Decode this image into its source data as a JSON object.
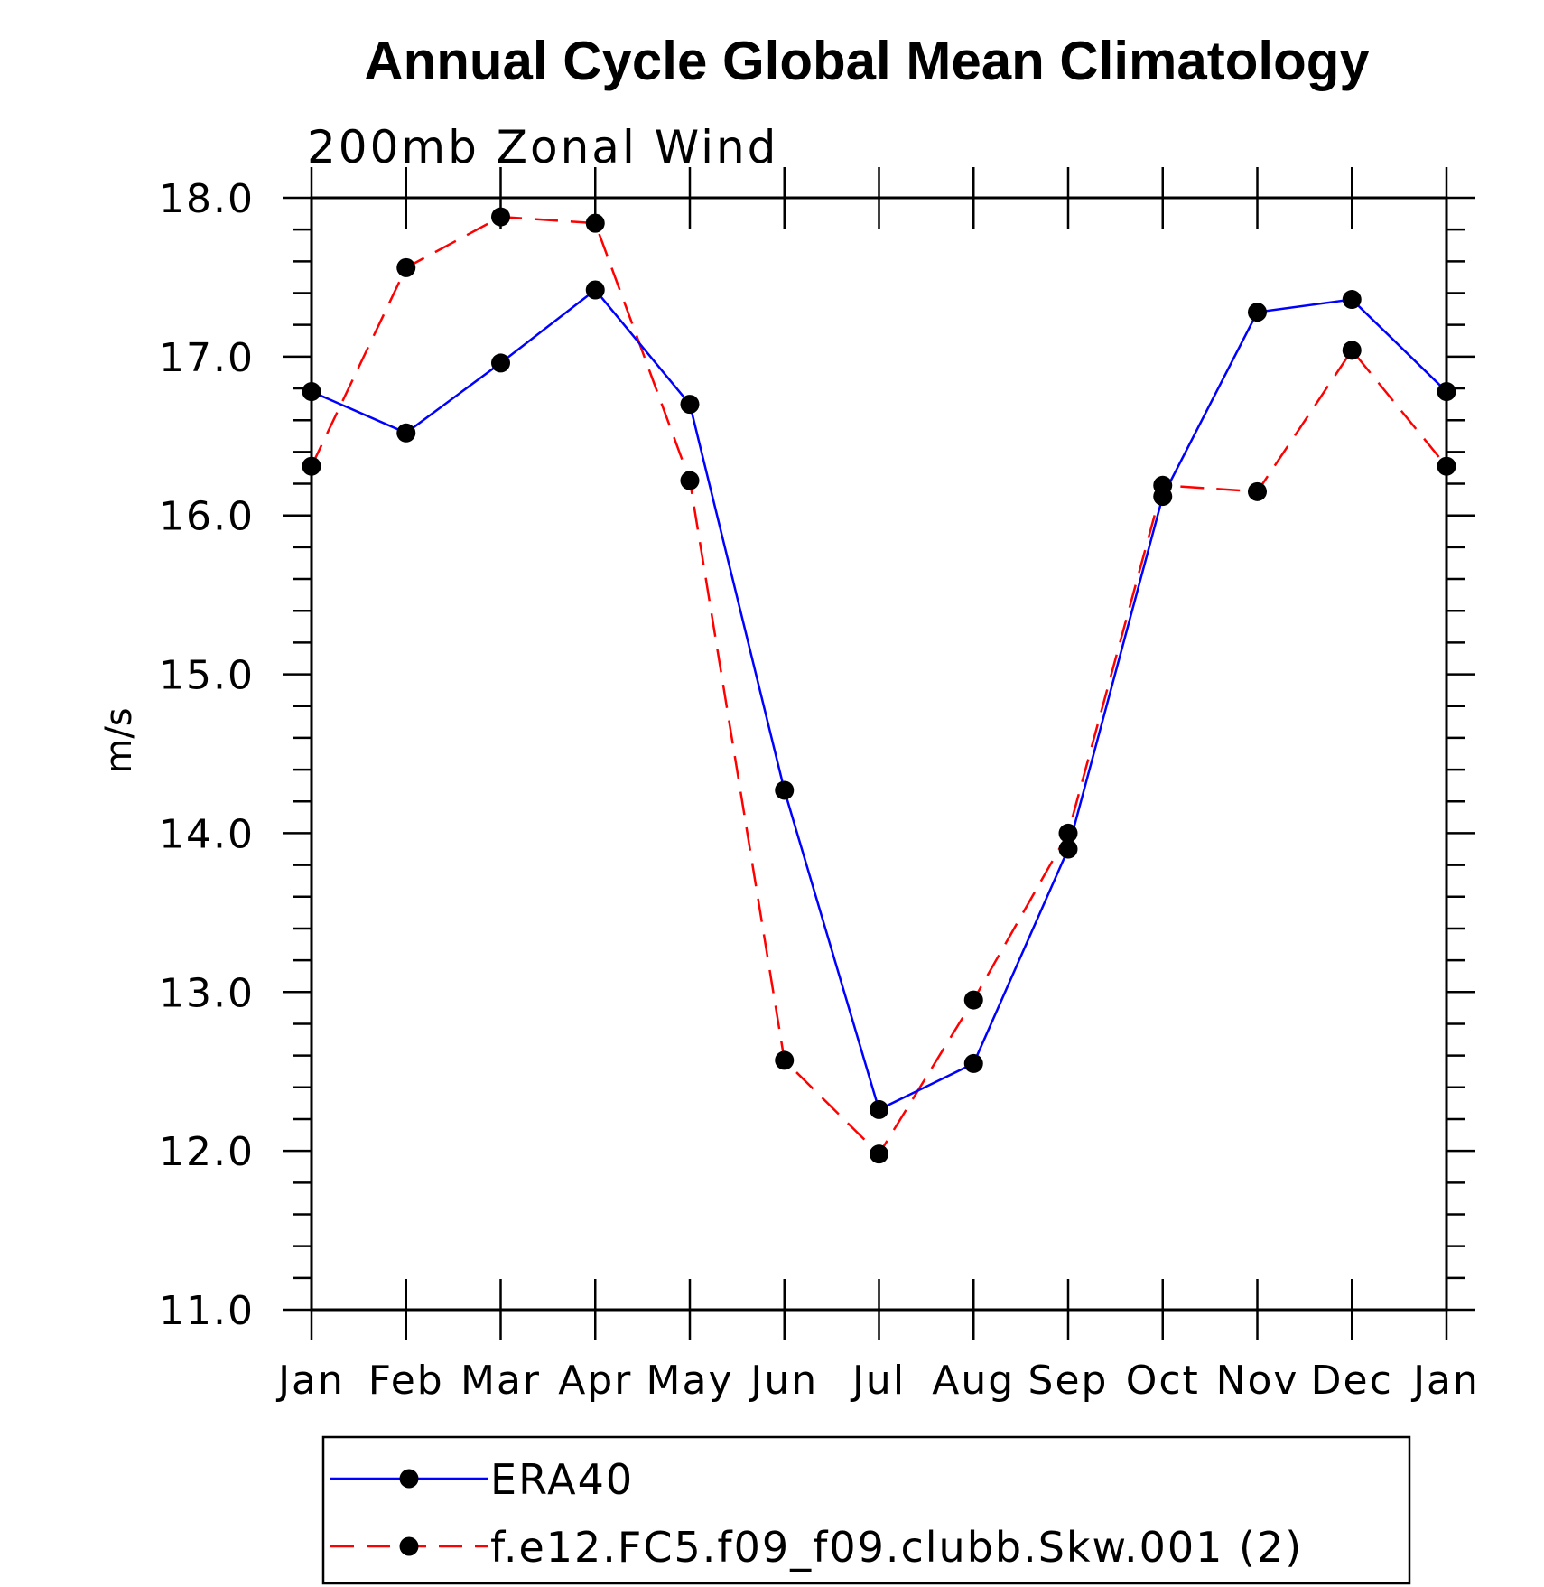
{
  "chart_data": {
    "type": "line",
    "title": "Annual Cycle Global Mean Climatology",
    "subtitle": "200mb  Zonal  Wind",
    "xlabel": "",
    "ylabel": "m/s",
    "categories": [
      "Jan",
      "Feb",
      "Mar",
      "Apr",
      "May",
      "Jun",
      "Jul",
      "Aug",
      "Sep",
      "Oct",
      "Nov",
      "Dec",
      "Jan"
    ],
    "ylim": [
      11.0,
      18.0
    ],
    "yticks": [
      "11.0",
      "12.0",
      "13.0",
      "14.0",
      "15.0",
      "16.0",
      "17.0",
      "18.0"
    ],
    "grid": false,
    "legend_position": "bottom",
    "series": [
      {
        "name": "ERA40",
        "color": "#0000ff",
        "dash": "solid",
        "marker": "filled-circle",
        "values": [
          16.78,
          16.52,
          16.96,
          17.42,
          16.7,
          14.27,
          12.26,
          12.55,
          13.9,
          16.12,
          17.28,
          17.36,
          16.78
        ]
      },
      {
        "name": "f.e12.FC5.f09_f09.clubb.Skw.001 (2)",
        "color": "#ff0000",
        "dash": "dashed",
        "marker": "filled-circle",
        "values": [
          16.31,
          17.56,
          17.88,
          17.84,
          16.22,
          12.57,
          11.98,
          12.95,
          14.0,
          16.19,
          16.15,
          17.04,
          16.31
        ]
      }
    ]
  }
}
